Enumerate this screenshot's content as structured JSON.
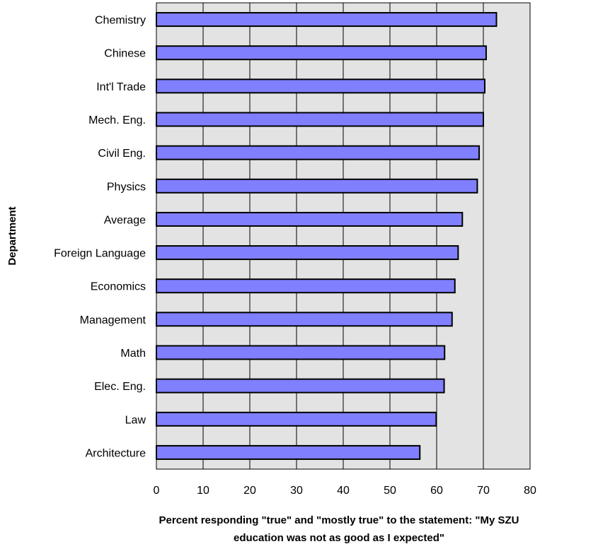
{
  "chart_data": {
    "type": "bar",
    "orientation": "horizontal",
    "categories": [
      "Chemistry",
      "Chinese",
      "Int'l Trade",
      "Mech. Eng.",
      "Civil Eng.",
      "Physics",
      "Average",
      "Foreign Language",
      "Economics",
      "Management",
      "Math",
      "Elec. Eng.",
      "Law",
      "Architecture"
    ],
    "values": [
      72.8,
      70.6,
      70.3,
      70.0,
      69.1,
      68.7,
      65.5,
      64.6,
      63.9,
      63.3,
      61.7,
      61.6,
      59.9,
      56.4
    ],
    "xlim": [
      0,
      80
    ],
    "xticks": [
      "0",
      "10",
      "20",
      "30",
      "40",
      "50",
      "60",
      "70",
      "80"
    ],
    "ylabel": "Department",
    "xlabel_lines": [
      "Percent responding \"true\" and \"mostly true\" to the statement: \"My SZU",
      "education was not as good as I expected\""
    ],
    "grid": "vertical",
    "legend": "none",
    "colors": {
      "bar_fill": "#8080ff",
      "bar_stroke": "#000000",
      "plot_bg": "#e3e3e3"
    }
  }
}
